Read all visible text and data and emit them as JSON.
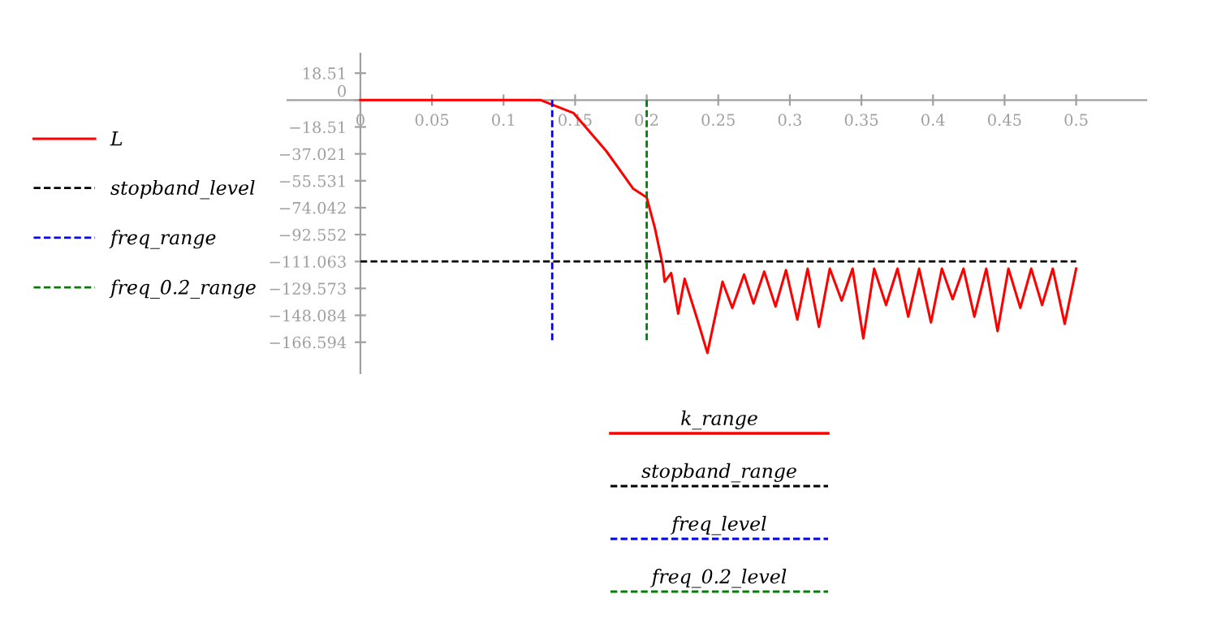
{
  "chart_data": {
    "type": "line",
    "xlim": [
      -0.051,
      0.549
    ],
    "ylim": [
      -188,
      32
    ],
    "xticks": [
      0,
      0.05,
      0.1,
      0.15,
      0.2,
      0.25,
      0.3,
      0.35,
      0.4,
      0.45,
      0.5
    ],
    "yticks": [
      18.51,
      0,
      {
        "value": -18.51,
        "label": "−18.51"
      },
      {
        "value": -37.021,
        "label": "−37.021"
      },
      {
        "value": -55.531,
        "label": "−55.531"
      },
      {
        "value": -74.042,
        "label": "−74.042"
      },
      {
        "value": -92.552,
        "label": "−92.552"
      },
      {
        "value": -111.063,
        "label": "−111.063"
      },
      {
        "value": -129.573,
        "label": "−129.573"
      },
      {
        "value": -148.084,
        "label": "−148.084"
      },
      {
        "value": -166.594,
        "label": "−166.594"
      }
    ],
    "grid": false,
    "legend": "left",
    "marker": "none",
    "series": [
      {
        "name": "L",
        "color": "#ff0000",
        "line_style": "solid",
        "x": [
          0,
          0.05,
          0.1,
          0.126,
          0.149,
          0.1717,
          0.1906,
          0.2,
          0.2057,
          0.2113,
          0.2125,
          0.2171,
          0.222,
          0.2265,
          0.236,
          0.2424,
          0.253,
          0.2598,
          0.268,
          0.2746,
          0.2821,
          0.29,
          0.2973,
          0.3052,
          0.3124,
          0.3203,
          0.3279,
          0.3362,
          0.3438,
          0.3513,
          0.3589,
          0.3672,
          0.3752,
          0.3827,
          0.3903,
          0.3986,
          0.4062,
          0.4137,
          0.4213,
          0.4289,
          0.4372,
          0.4451,
          0.4527,
          0.461,
          0.4686,
          0.4762,
          0.4837,
          0.492,
          0.5
        ],
        "values": [
          0,
          0,
          0,
          0,
          -9,
          -35,
          -61,
          -67,
          -88,
          -114,
          -125,
          -119,
          -147,
          -123,
          -153,
          -174,
          -125,
          -143,
          -120,
          -140,
          -118,
          -142,
          -117,
          -151,
          -116,
          -156,
          -116,
          -138,
          -116,
          -164,
          -116,
          -141,
          -116,
          -149,
          -116,
          -153,
          -116,
          -137,
          -116,
          -149,
          -116,
          -159,
          -116,
          -143,
          -116,
          -141,
          -116,
          -154,
          -116
        ]
      },
      {
        "name": "stopband_level",
        "color": "#000000",
        "line_style": "dashed",
        "x": [
          0,
          0.5
        ],
        "values": [
          -111.063,
          -111.063
        ]
      },
      {
        "name": "freq_range",
        "color": "#0000ff",
        "line_style": "dashed",
        "x": [
          0.134,
          0.134
        ],
        "values": [
          0,
          -167
        ]
      },
      {
        "name": "freq_0.2_range",
        "color": "#008000",
        "line_style": "dashed",
        "x": [
          0.2,
          0.2
        ],
        "values": [
          0,
          -167
        ]
      }
    ],
    "annotations": [
      "k_range",
      "stopband_range",
      "freq_level",
      "freq_0.2_level"
    ]
  }
}
